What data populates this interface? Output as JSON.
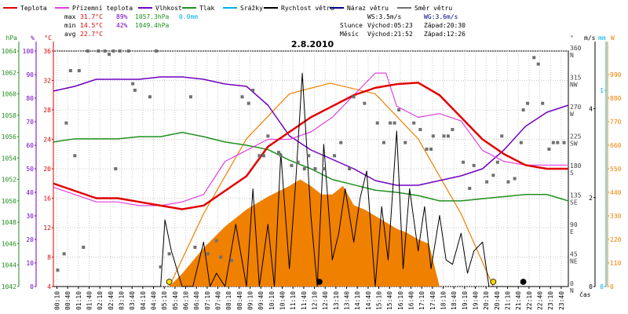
{
  "chart_data": {
    "type": "line",
    "title": "2.8.2010",
    "time_label": "čas",
    "legend": [
      {
        "name": "Teplota",
        "color": "#e00000"
      },
      {
        "name": "Přízemní teplota",
        "color": "#e040e0"
      },
      {
        "name": "Vlhkost",
        "color": "#7000c0"
      },
      {
        "name": "Tlak",
        "color": "#209020"
      },
      {
        "name": "Srážky",
        "color": "#00b0e0"
      },
      {
        "name": "Rychlost větru",
        "color": "#000000"
      },
      {
        "name": "Náraz větru",
        "color": "#000080"
      },
      {
        "name": "Směr větru",
        "color": "#707070"
      }
    ],
    "stats": {
      "max_label": "max",
      "max_temp": "31.7°C",
      "max_hum": "89%",
      "max_press": "1057.3hPa",
      "rain": "0.0mm",
      "min_label": "min",
      "min_temp": "14.5°C",
      "min_hum": "42%",
      "min_press": "1049.4hPa",
      "avg_label": "avg",
      "avg_temp": "22.7°C",
      "ws": "WS:3.5m/s",
      "wg": "WG:3.6m/s",
      "sun_label": "Slunce",
      "sun_rise": "Východ:05:23",
      "sun_set": "Západ:20:30",
      "moon_label": "Měsíc",
      "moon_rise": "Východ:21:52",
      "moon_set": "Západ:12:26"
    },
    "axes": {
      "hpa": {
        "label": "hPa",
        "ticks": [
          "1042",
          "1044",
          "1046",
          "1048",
          "1050",
          "1052",
          "1054",
          "1056",
          "1058",
          "1060",
          "1062",
          "1064"
        ],
        "range": [
          1042,
          1064
        ],
        "color": "#209020"
      },
      "pct": {
        "label": "%",
        "ticks": [
          "0",
          "10",
          "20",
          "30",
          "40",
          "50",
          "60",
          "70",
          "80",
          "90",
          "100"
        ],
        "range": [
          0,
          100
        ],
        "color": "#7000c0"
      },
      "temp": {
        "label": "°C",
        "ticks": [
          "4",
          "8",
          "12",
          "16",
          "20",
          "24",
          "28",
          "32",
          "36"
        ],
        "range": [
          4,
          36
        ],
        "color": "#e00000"
      },
      "dir": {
        "label": "°",
        "ticks": [
          {
            "v": "0",
            "c": "N"
          },
          {
            "v": "45",
            "c": "NE"
          },
          {
            "v": "90",
            "c": "E"
          },
          {
            "v": "135",
            "c": "SE"
          },
          {
            "v": "180",
            "c": "S"
          },
          {
            "v": "225",
            "c": "SW"
          },
          {
            "v": "270",
            "c": "W"
          },
          {
            "v": "315",
            "c": "NW"
          },
          {
            "v": "360",
            "c": "N"
          }
        ],
        "range": [
          0,
          360
        ],
        "color": "#404040"
      },
      "ms": {
        "label": "m/s",
        "ticks": [
          "0",
          "2",
          "4"
        ],
        "range": [
          0,
          5.3
        ],
        "color": "#000000"
      },
      "mm": {
        "label": "mm",
        "ticks": [
          "0",
          "1"
        ],
        "range": [
          0,
          1.2
        ],
        "color": "#00b0e0"
      },
      "wm2": {
        "label": "W",
        "ticks": [
          "0",
          "110",
          "220",
          "330",
          "440",
          "550",
          "660",
          "770",
          "880",
          "990"
        ],
        "range": [
          0,
          1100
        ],
        "color": "#f08000"
      }
    },
    "x_ticks": [
      "00:10",
      "00:40",
      "01:10",
      "01:40",
      "02:10",
      "02:40",
      "03:10",
      "03:40",
      "04:10",
      "04:40",
      "05:10",
      "05:40",
      "06:10",
      "06:40",
      "07:10",
      "07:40",
      "08:10",
      "08:40",
      "09:10",
      "09:40",
      "10:10",
      "10:40",
      "11:10",
      "11:40",
      "12:10",
      "12:40",
      "13:10",
      "13:40",
      "14:10",
      "14:40",
      "15:10",
      "15:40",
      "16:10",
      "16:40",
      "17:10",
      "17:40",
      "18:10",
      "18:40",
      "19:10",
      "19:40",
      "20:10",
      "20:40",
      "21:10",
      "21:40",
      "22:10",
      "22:40",
      "23:10",
      "23:40"
    ],
    "series": {
      "temperature": {
        "x": [
          0,
          1,
          2,
          3,
          4,
          5,
          6,
          7,
          8,
          9,
          10,
          11,
          12,
          13,
          14,
          15,
          16,
          17,
          18,
          19,
          20,
          21,
          22,
          23,
          24
        ],
        "y": [
          18,
          17,
          16,
          16,
          15.5,
          15,
          14.5,
          15,
          17,
          19,
          23,
          25,
          27,
          28.5,
          30,
          31,
          31.5,
          31.7,
          30,
          27,
          24,
          22,
          20.5,
          20,
          20
        ]
      },
      "ground_temperature": {
        "x": [
          0,
          1,
          2,
          3,
          4,
          5,
          6,
          7,
          8,
          9,
          10,
          11,
          12,
          13,
          14,
          15,
          15.5,
          16,
          17,
          18,
          19,
          20,
          21,
          22,
          23,
          24
        ],
        "y": [
          17.5,
          16.5,
          15.5,
          15.5,
          15,
          15,
          15.5,
          16.5,
          21,
          22.5,
          24,
          24,
          25,
          27,
          30,
          33,
          33,
          28.5,
          27,
          27.5,
          26.5,
          22.5,
          21,
          20.5,
          20.5,
          20.5
        ]
      },
      "humidity": {
        "x": [
          0,
          1,
          2,
          3,
          4,
          5,
          6,
          7,
          8,
          9,
          10,
          11,
          12,
          13,
          14,
          15,
          16,
          17,
          18,
          19,
          20,
          21,
          22,
          23,
          24
        ],
        "y": [
          83,
          85,
          88,
          88,
          88,
          89,
          89,
          88,
          86,
          85,
          77,
          64,
          58,
          54,
          50,
          45,
          43,
          43,
          45,
          47,
          50,
          58,
          68,
          74,
          77
        ]
      },
      "pressure": {
        "x": [
          0,
          1,
          2,
          3,
          4,
          5,
          6,
          7,
          8,
          9,
          10,
          11,
          12,
          13,
          14,
          15,
          16,
          17,
          18,
          19,
          20,
          21,
          22,
          23,
          24
        ],
        "y": [
          1055.5,
          1055.8,
          1055.8,
          1055.8,
          1056,
          1056,
          1056.4,
          1056,
          1055.5,
          1055.2,
          1054.8,
          1053.8,
          1053,
          1052,
          1051.5,
          1051,
          1050.8,
          1050.5,
          1050,
          1050,
          1050.2,
          1050.4,
          1050.6,
          1050.6,
          1050
        ]
      },
      "solar_radiation": {
        "x": [
          5.4,
          6,
          7,
          8,
          9,
          10,
          11,
          11.5,
          12,
          12.5,
          13,
          13.5,
          14,
          14.5,
          15,
          15.5,
          16,
          16.5,
          17,
          17.5,
          18,
          18.5,
          19,
          20,
          20.5
        ],
        "y": [
          0,
          60,
          180,
          280,
          360,
          420,
          470,
          500,
          470,
          430,
          430,
          470,
          380,
          360,
          330,
          300,
          270,
          250,
          220,
          200,
          0,
          0,
          0,
          0,
          0
        ]
      },
      "clear_sky_radiation": {
        "x": [
          5.4,
          7,
          9,
          11,
          12.9,
          15,
          17,
          19,
          20.5
        ],
        "y": [
          0,
          340,
          690,
          900,
          950,
          900,
          690,
          340,
          0
        ]
      },
      "wind_speed": {
        "x": [
          0,
          2,
          4,
          5,
          5.2,
          5.5,
          6,
          6.5,
          7,
          7.3,
          7.6,
          8,
          8.5,
          9,
          9.3,
          9.6,
          10,
          10.3,
          10.6,
          11,
          11.3,
          11.6,
          12,
          12.3,
          12.6,
          13,
          13.3,
          13.6,
          14,
          14.3,
          14.6,
          15,
          15.3,
          15.6,
          16,
          16.3,
          16.6,
          17,
          17.3,
          17.6,
          18,
          18.3,
          18.6,
          19,
          19.3,
          19.6,
          20,
          20.3,
          20.6,
          21,
          24
        ],
        "y": [
          0,
          0,
          0,
          0,
          1.5,
          0.8,
          0,
          0,
          1,
          0,
          0.3,
          0,
          1.4,
          0,
          2.2,
          0,
          1.4,
          0,
          3,
          0.4,
          2.4,
          4.8,
          1.6,
          0,
          3.2,
          0.6,
          1.2,
          2.2,
          1,
          2,
          2.6,
          0,
          1.8,
          0.6,
          3.5,
          0.4,
          2.2,
          0.8,
          1.8,
          0.4,
          1.6,
          0.6,
          0.5,
          1.2,
          0.3,
          0.8,
          1,
          0,
          0,
          0,
          0
        ]
      },
      "wind_gust": {
        "x": [
          0,
          24
        ],
        "y": [
          0,
          0
        ]
      },
      "wind_dir": {
        "x": [
          0.2,
          0.5,
          0.8,
          1.2,
          1.6,
          2.1,
          2.4,
          2.6,
          2.8,
          3.1,
          3.5,
          3.8,
          4.5,
          5.0,
          6.4,
          6.6,
          7.2,
          7.8,
          8.8,
          9.3,
          9.6,
          10.0,
          10.5,
          11.1,
          11.4,
          11.7,
          12.2,
          12.6,
          13.1,
          14.0,
          15.1,
          15.4,
          15.9,
          16.4,
          16.8,
          17.1,
          17.4,
          17.7,
          18.2,
          18.6,
          19.1,
          19.6,
          20.2,
          20.5,
          20.9,
          21.2,
          21.5,
          21.9,
          22.4,
          22.6,
          22.8,
          23.3,
          23.5,
          23.8,
          0.6,
          1.0,
          1.4,
          2.9,
          3.7,
          4.8,
          5.4,
          7.6,
          8.3,
          9.1,
          9.8,
          10.6,
          11.9,
          13.4,
          13.8,
          14.5,
          15.7,
          16.1,
          17.6,
          18.4,
          19.4,
          20.7,
          21.8,
          22.1,
          23.1
        ],
        "y": [
          25,
          50,
          330,
          330,
          360,
          360,
          360,
          355,
          360,
          360,
          360,
          300,
          290,
          30,
          290,
          60,
          50,
          45,
          290,
          300,
          200,
          230,
          205,
          185,
          190,
          180,
          180,
          180,
          200,
          290,
          250,
          220,
          250,
          220,
          250,
          240,
          210,
          230,
          230,
          240,
          190,
          185,
          160,
          170,
          230,
          160,
          165,
          270,
          350,
          340,
          280,
          220,
          220,
          220,
          250,
          200,
          60,
          180,
          310,
          360,
          50,
          70,
          40,
          280,
          200,
          200,
          200,
          220,
          180,
          280,
          250,
          270,
          210,
          230,
          150,
          190,
          220,
          280,
          210
        ]
      },
      "markers": [
        {
          "x": 5.4,
          "y": 0,
          "color": "#ffd700"
        },
        {
          "x": 12.4,
          "y": 0,
          "color": "#000000"
        },
        {
          "x": 20.5,
          "y": 0,
          "color": "#ffd700"
        },
        {
          "x": 21.9,
          "y": 0,
          "color": "#000000"
        }
      ]
    }
  }
}
